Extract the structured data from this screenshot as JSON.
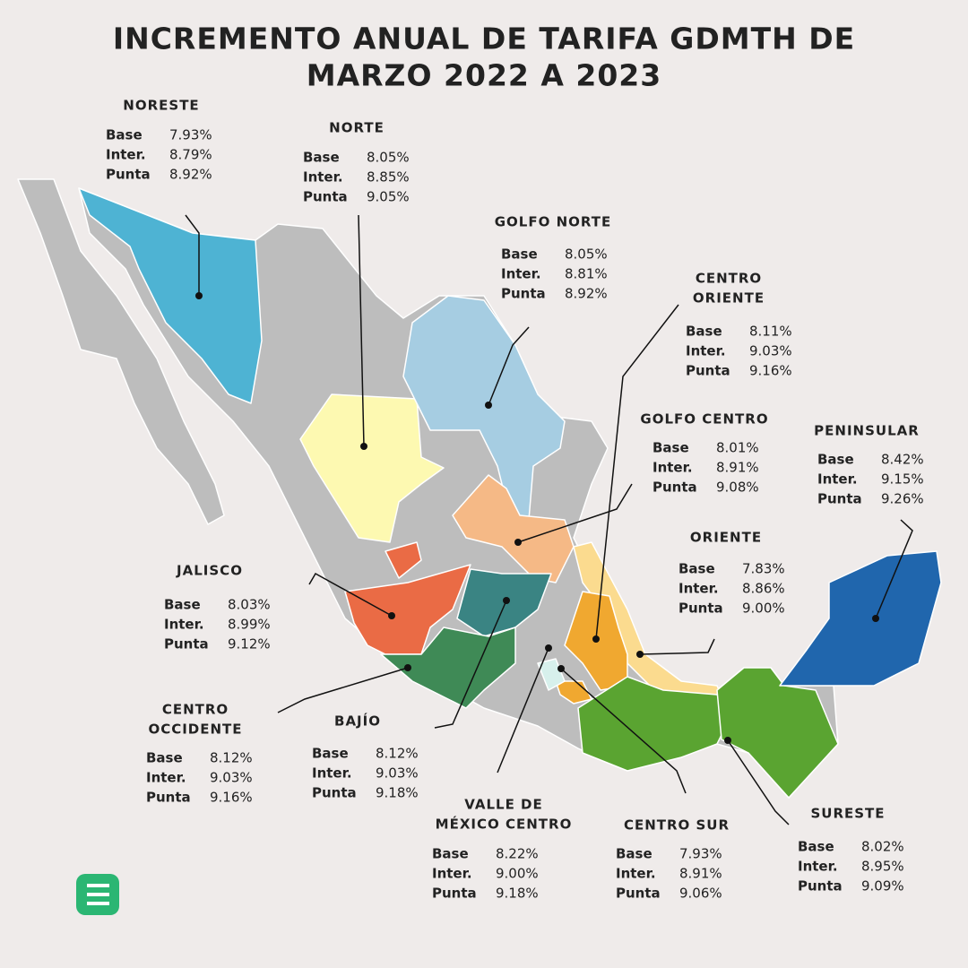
{
  "header": {
    "title_lines": [
      "INCREMENTO ANUAL DE TARIFA GDMTH DE",
      "MARZO 2022 A 2023"
    ]
  },
  "row_labels": [
    "Base",
    "Inter.",
    "Punta"
  ],
  "regions": [
    {
      "name_lines": [
        "NORESTE"
      ],
      "values": [
        "7.93%",
        "8.79%",
        "8.92%"
      ]
    },
    {
      "name_lines": [
        "NORTE"
      ],
      "values": [
        "8.05%",
        "8.85%",
        "9.05%"
      ]
    },
    {
      "name_lines": [
        "GOLFO NORTE"
      ],
      "values": [
        "8.05%",
        "8.81%",
        "8.92%"
      ]
    },
    {
      "name_lines": [
        "CENTRO",
        "ORIENTE"
      ],
      "values": [
        "8.11%",
        "9.03%",
        "9.16%"
      ]
    },
    {
      "name_lines": [
        "GOLFO CENTRO"
      ],
      "values": [
        "8.01%",
        "8.91%",
        "9.08%"
      ]
    },
    {
      "name_lines": [
        "PENINSULAR"
      ],
      "values": [
        "8.42%",
        "9.15%",
        "9.26%"
      ]
    },
    {
      "name_lines": [
        "ORIENTE"
      ],
      "values": [
        "7.83%",
        "8.86%",
        "9.00%"
      ]
    },
    {
      "name_lines": [
        "JALISCO"
      ],
      "values": [
        "8.03%",
        "8.99%",
        "9.12%"
      ]
    },
    {
      "name_lines": [
        "CENTRO",
        "OCCIDENTE"
      ],
      "values": [
        "8.12%",
        "9.03%",
        "9.16%"
      ]
    },
    {
      "name_lines": [
        "BAJÍO"
      ],
      "values": [
        "8.12%",
        "9.03%",
        "9.18%"
      ]
    },
    {
      "name_lines": [
        "VALLE DE",
        "MÉXICO CENTRO"
      ],
      "values": [
        "8.22%",
        "9.00%",
        "9.18%"
      ]
    },
    {
      "name_lines": [
        "CENTRO SUR"
      ],
      "values": [
        "7.93%",
        "8.91%",
        "9.06%"
      ]
    },
    {
      "name_lines": [
        "SURESTE"
      ],
      "values": [
        "8.02%",
        "8.95%",
        "9.09%"
      ]
    }
  ]
}
